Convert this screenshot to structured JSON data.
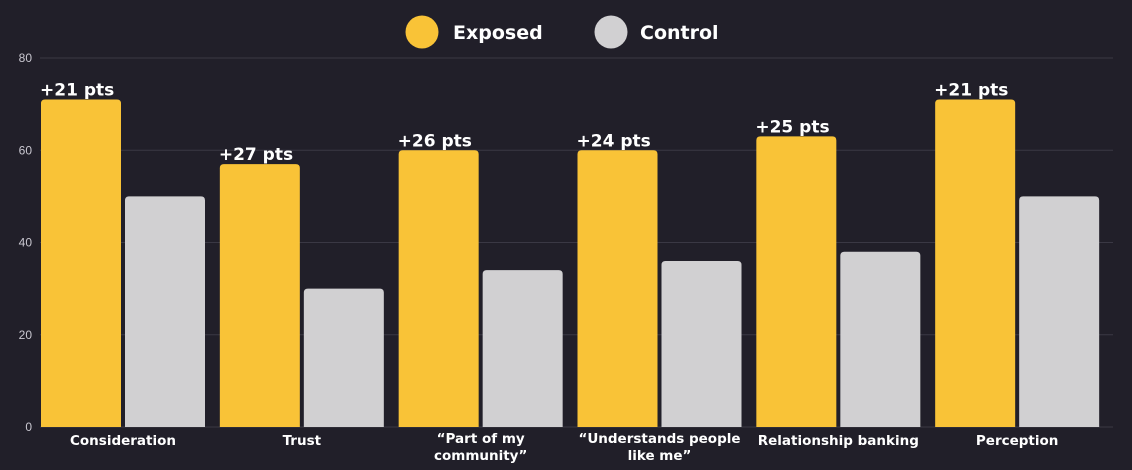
{
  "chart_data": {
    "type": "bar",
    "categories": [
      [
        "Consideration"
      ],
      [
        "Trust"
      ],
      [
        "“Part of my",
        "community”"
      ],
      [
        "“Understands people",
        "like me”"
      ],
      [
        "Relationship banking"
      ],
      [
        "Perception"
      ]
    ],
    "series": [
      {
        "name": "Exposed",
        "color": "#f9c337",
        "values": [
          71,
          57,
          60,
          60,
          63,
          71
        ]
      },
      {
        "name": "Control",
        "color": "#d1d0d2",
        "values": [
          50,
          30,
          34,
          36,
          38,
          50
        ]
      }
    ],
    "data_labels": [
      "+21 pts",
      "+27 pts",
      "+26 pts",
      "+24 pts",
      "+25 pts",
      "+21 pts"
    ],
    "ylim": [
      0,
      80
    ],
    "yticks": [
      0,
      20,
      40,
      60,
      80
    ],
    "grid": true,
    "legend_position": "top-center",
    "background": "#211f29",
    "grid_color": "#3a3844"
  }
}
